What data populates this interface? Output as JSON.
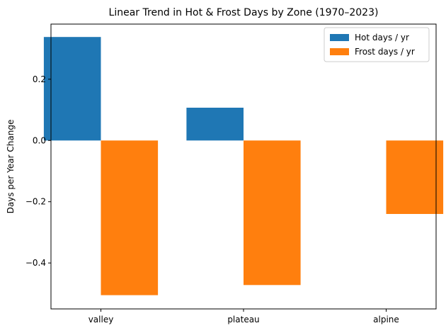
{
  "chart_data": {
    "type": "bar",
    "title": "Linear Trend in Hot & Frost Days by Zone (1970–2023)",
    "xlabel": "",
    "ylabel": "Days per Year Change",
    "categories": [
      "valley",
      "plateau",
      "alpine"
    ],
    "series": [
      {
        "name": "Hot days / yr",
        "color": "#1f77b4",
        "values": [
          0.338,
          0.107,
          0.0
        ]
      },
      {
        "name": "Frost days / yr",
        "color": "#ff7f0e",
        "values": [
          -0.505,
          -0.472,
          -0.24
        ]
      }
    ],
    "ylim": [
      -0.55,
      0.38
    ],
    "yticks": [
      -0.4,
      -0.2,
      0.0,
      0.2
    ],
    "ytick_labels": [
      "−0.4",
      "−0.2",
      "0.0",
      "0.2"
    ],
    "legend_position": "top-right",
    "grid": false
  }
}
